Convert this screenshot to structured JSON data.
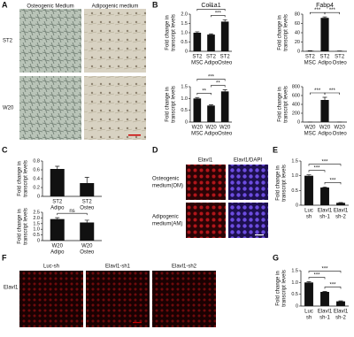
{
  "figure": {
    "panels": [
      "A",
      "B",
      "C",
      "D",
      "E",
      "F",
      "G"
    ],
    "a": {
      "columns": [
        "Osteogenic Medium",
        "Adipogenic medium"
      ],
      "rows": [
        "ST2",
        "W20"
      ]
    },
    "d": {
      "columns": [
        "Elavl1",
        "Elavl1/DAPI"
      ],
      "rows": [
        [
          "Osteogenic",
          "medium(OM)"
        ],
        [
          "Adipogenic",
          "medium(AM)"
        ]
      ]
    },
    "f": {
      "columns": [
        "Luc-sh",
        "Elavl1-sh1",
        "Elavl1-sh2"
      ],
      "row": "Elavl1"
    }
  },
  "chart_data": [
    {
      "type": "bar",
      "title": "Col1a1",
      "ylabel": [
        "Fold change in",
        "transcript levels"
      ],
      "categories": [
        [
          "ST2",
          "MSC"
        ],
        [
          "ST2",
          "Adipo"
        ],
        [
          "ST2",
          "Osteo"
        ]
      ],
      "values": [
        1.0,
        0.9,
        1.6
      ],
      "errors": [
        0.05,
        0.04,
        0.1
      ],
      "ylim": [
        0,
        2
      ],
      "yticks": [
        0,
        0.5,
        {
          "value": 1,
          "label": "1.0"
        },
        1.5,
        {
          "value": 2,
          "label": "2.0"
        }
      ],
      "color": "#111111",
      "annotations": [
        {
          "text": "***",
          "between": [
            1,
            2
          ]
        },
        {
          "text": "**",
          "between": [
            0,
            2
          ]
        }
      ]
    },
    {
      "type": "bar",
      "title": "Fabp4",
      "ylabel": [
        "Fold change in",
        "transcript levels"
      ],
      "categories": [
        [
          "ST2",
          "MSC"
        ],
        [
          "ST2",
          "Adipo"
        ],
        [
          "ST2",
          "Osteo"
        ]
      ],
      "values": [
        1,
        72,
        0.5
      ],
      "errors": [
        0.2,
        2,
        0.2
      ],
      "ylim": [
        0,
        80
      ],
      "yticks": [
        0,
        20,
        40,
        60,
        80
      ],
      "color": "#111111",
      "annotations": [
        {
          "text": "***",
          "between": [
            0,
            1
          ]
        },
        {
          "text": "***",
          "between": [
            1,
            2
          ]
        }
      ]
    },
    {
      "type": "bar",
      "ylabel": [
        "Fold change in",
        "transcript levels"
      ],
      "categories": [
        [
          "W20",
          "MSC"
        ],
        [
          "W20",
          "Adipo"
        ],
        [
          "W20",
          "Osteo"
        ]
      ],
      "values": [
        1.0,
        0.7,
        1.3
      ],
      "errors": [
        0.04,
        0.03,
        0.07
      ],
      "ylim": [
        0,
        1.5
      ],
      "yticks": [
        0,
        0.5,
        {
          "value": 1,
          "label": "1.0"
        },
        1.5
      ],
      "color": "#111111",
      "annotations": [
        {
          "text": "**",
          "between": [
            0,
            1
          ]
        },
        {
          "text": "**",
          "between": [
            1,
            2
          ]
        },
        {
          "text": "***",
          "between": [
            0,
            2
          ]
        }
      ]
    },
    {
      "type": "bar",
      "ylabel": [
        "Fold change in",
        "transcript levels"
      ],
      "categories": [
        [
          "W20",
          "MSC"
        ],
        [
          "W20",
          "Adipo"
        ],
        [
          "W20",
          "Osteo"
        ]
      ],
      "values": [
        1,
        500,
        1
      ],
      "errors": [
        0.5,
        60,
        0.5
      ],
      "ylim": [
        0,
        800
      ],
      "yticks": [
        0,
        200,
        400,
        600,
        800
      ],
      "color": "#111111",
      "annotations": [
        {
          "text": "***",
          "between": [
            0,
            1
          ]
        },
        {
          "text": "***",
          "between": [
            1,
            2
          ]
        }
      ]
    },
    {
      "type": "bar",
      "ylabel": [
        "Fold change in",
        "transcript levels"
      ],
      "categories": [
        [
          "ST2",
          "Adipo"
        ],
        [
          "ST2",
          "Osteo"
        ]
      ],
      "values": [
        0.62,
        0.3
      ],
      "errors": [
        0.06,
        0.13
      ],
      "ylim": [
        0,
        0.8
      ],
      "yticks": [
        0,
        0.2,
        0.4,
        0.6,
        0.8
      ],
      "color": "#111111"
    },
    {
      "type": "bar",
      "ylabel": [
        "Fold change in",
        "transcript levels"
      ],
      "categories": [
        [
          "W20",
          "Adipo"
        ],
        [
          "W20",
          "Osteo"
        ]
      ],
      "values": [
        1.9,
        1.6
      ],
      "errors": [
        0.12,
        0.2
      ],
      "ylim": [
        0,
        2.5
      ],
      "yticks": [
        0,
        0.5,
        {
          "value": 1,
          "label": "1.0"
        },
        1.5,
        {
          "value": 2,
          "label": "2.0"
        },
        2.5
      ],
      "color": "#111111",
      "annotations": [
        {
          "text": "ns",
          "between": [
            0,
            1
          ]
        }
      ]
    },
    {
      "type": "bar",
      "ylabel": [
        "Fold change in",
        "transcript levels"
      ],
      "categories": [
        [
          "Luc",
          "sh"
        ],
        [
          "Elavl1",
          "sh-1"
        ],
        [
          "Elavl1",
          "sh-2"
        ]
      ],
      "values": [
        1.0,
        0.6,
        0.08
      ],
      "errors": [
        0.03,
        0.02,
        0.01
      ],
      "ylim": [
        0,
        1.5
      ],
      "yticks": [
        0,
        0.5,
        {
          "value": 1,
          "label": "1.0"
        },
        1.5
      ],
      "color": "#111111",
      "annotations": [
        {
          "text": "***",
          "between": [
            0,
            1
          ]
        },
        {
          "text": "***",
          "between": [
            1,
            2
          ]
        },
        {
          "text": "***",
          "between": [
            0,
            2
          ]
        }
      ]
    },
    {
      "type": "bar",
      "ylabel": [
        "Fold change in",
        "transcript levels"
      ],
      "categories": [
        [
          "Luc",
          "sh"
        ],
        [
          "Elavl1",
          "sh-1"
        ],
        [
          "Elavl1",
          "sh-2"
        ]
      ],
      "values": [
        1.0,
        0.6,
        0.2
      ],
      "errors": [
        0.03,
        0.02,
        0.02
      ],
      "ylim": [
        0,
        1.5
      ],
      "yticks": [
        0,
        0.5,
        {
          "value": 1,
          "label": "1.0"
        },
        1.5
      ],
      "color": "#111111",
      "annotations": [
        {
          "text": "***",
          "between": [
            0,
            1
          ]
        },
        {
          "text": "***",
          "between": [
            1,
            2
          ]
        },
        {
          "text": "***",
          "between": [
            0,
            2
          ]
        }
      ]
    }
  ]
}
